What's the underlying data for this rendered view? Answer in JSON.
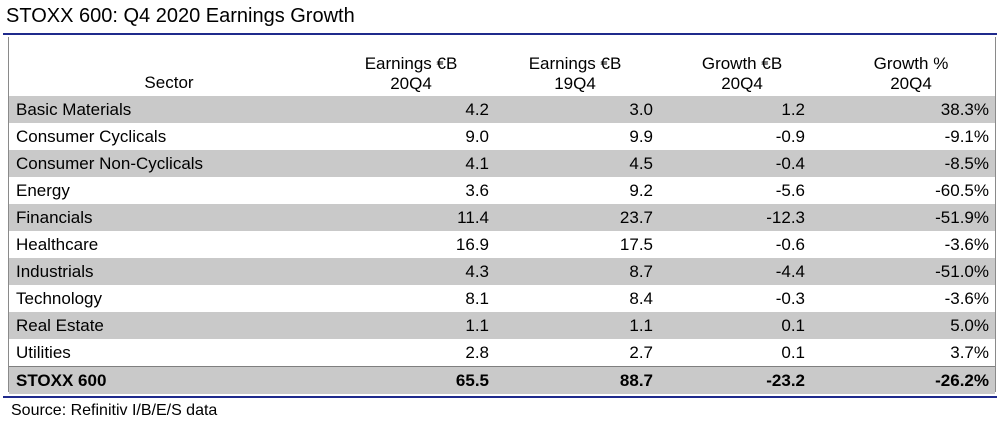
{
  "title": "STOXX 600: Q4 2020 Earnings Growth",
  "source": "Source: Refinitiv I/B/E/S data",
  "colors": {
    "rule": "#1f2a8c",
    "row_shade": "#c9c9c9"
  },
  "chart_data": {
    "type": "table",
    "title": "STOXX 600: Q4 2020 Earnings Growth",
    "columns": [
      {
        "line1": "",
        "line2": "Sector"
      },
      {
        "line1": "Earnings €B",
        "line2": "20Q4"
      },
      {
        "line1": "Earnings €B",
        "line2": "19Q4"
      },
      {
        "line1": "Growth €B",
        "line2": "20Q4"
      },
      {
        "line1": "Growth %",
        "line2": "20Q4"
      }
    ],
    "rows": [
      {
        "sector": "Basic Materials",
        "earnings_20q4": "4.2",
        "earnings_19q4": "3.0",
        "growth_eur": "1.2",
        "growth_pct": "38.3%"
      },
      {
        "sector": "Consumer Cyclicals",
        "earnings_20q4": "9.0",
        "earnings_19q4": "9.9",
        "growth_eur": "-0.9",
        "growth_pct": "-9.1%"
      },
      {
        "sector": "Consumer Non-Cyclicals",
        "earnings_20q4": "4.1",
        "earnings_19q4": "4.5",
        "growth_eur": "-0.4",
        "growth_pct": "-8.5%"
      },
      {
        "sector": "Energy",
        "earnings_20q4": "3.6",
        "earnings_19q4": "9.2",
        "growth_eur": "-5.6",
        "growth_pct": "-60.5%"
      },
      {
        "sector": "Financials",
        "earnings_20q4": "11.4",
        "earnings_19q4": "23.7",
        "growth_eur": "-12.3",
        "growth_pct": "-51.9%"
      },
      {
        "sector": "Healthcare",
        "earnings_20q4": "16.9",
        "earnings_19q4": "17.5",
        "growth_eur": "-0.6",
        "growth_pct": "-3.6%"
      },
      {
        "sector": "Industrials",
        "earnings_20q4": "4.3",
        "earnings_19q4": "8.7",
        "growth_eur": "-4.4",
        "growth_pct": "-51.0%"
      },
      {
        "sector": "Technology",
        "earnings_20q4": "8.1",
        "earnings_19q4": "8.4",
        "growth_eur": "-0.3",
        "growth_pct": "-3.6%"
      },
      {
        "sector": "Real Estate",
        "earnings_20q4": "1.1",
        "earnings_19q4": "1.1",
        "growth_eur": "0.1",
        "growth_pct": "5.0%"
      },
      {
        "sector": "Utilities",
        "earnings_20q4": "2.8",
        "earnings_19q4": "2.7",
        "growth_eur": "0.1",
        "growth_pct": "3.7%"
      }
    ],
    "total": {
      "sector": "STOXX 600",
      "earnings_20q4": "65.5",
      "earnings_19q4": "88.7",
      "growth_eur": "-23.2",
      "growth_pct": "-26.2%"
    }
  }
}
